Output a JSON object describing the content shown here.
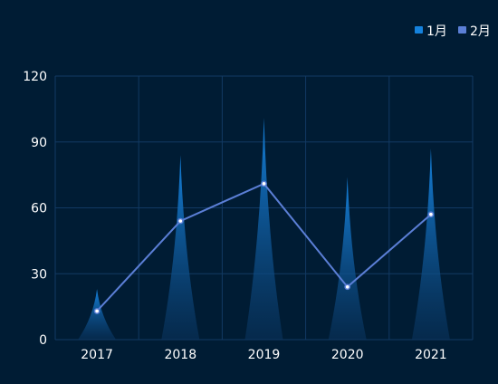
{
  "chart_data": {
    "type": "bar",
    "categories": [
      "2017",
      "2018",
      "2019",
      "2020",
      "2021"
    ],
    "series": [
      {
        "name": "1月",
        "type": "pictorial-triangle-bar",
        "color": "#1379d0",
        "values": [
          23,
          84,
          101,
          74,
          87
        ]
      },
      {
        "name": "2月",
        "type": "line",
        "color": "#5b7fd6",
        "values": [
          13,
          54,
          71,
          24,
          57
        ]
      }
    ],
    "ylim": [
      0,
      120
    ],
    "yticks": [
      0,
      30,
      60,
      90,
      120
    ],
    "grid": true,
    "legend": "top-right",
    "colors": {
      "background": "#001c34",
      "grid": "#123a63",
      "axis_text": "#ffffff",
      "legend_text": "#ffffff",
      "bar_top": "#1582dd",
      "bar_bottom": "#0a3560",
      "line": "#5b7fd6"
    }
  }
}
